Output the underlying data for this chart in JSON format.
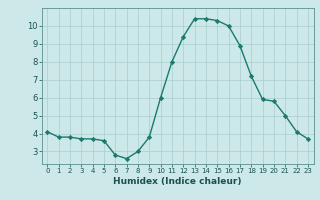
{
  "x": [
    0,
    1,
    2,
    3,
    4,
    5,
    6,
    7,
    8,
    9,
    10,
    11,
    12,
    13,
    14,
    15,
    16,
    17,
    18,
    19,
    20,
    21,
    22,
    23
  ],
  "y": [
    4.1,
    3.8,
    3.8,
    3.7,
    3.7,
    3.6,
    2.8,
    2.6,
    3.0,
    3.8,
    6.0,
    8.0,
    9.4,
    10.4,
    10.4,
    10.3,
    10.0,
    8.9,
    7.2,
    5.9,
    5.8,
    5.0,
    4.1,
    3.7
  ],
  "xlabel": "Humidex (Indice chaleur)",
  "xlim": [
    -0.5,
    23.5
  ],
  "ylim": [
    2.3,
    11.0
  ],
  "yticks": [
    3,
    4,
    5,
    6,
    7,
    8,
    9,
    10
  ],
  "xticks": [
    0,
    1,
    2,
    3,
    4,
    5,
    6,
    7,
    8,
    9,
    10,
    11,
    12,
    13,
    14,
    15,
    16,
    17,
    18,
    19,
    20,
    21,
    22,
    23
  ],
  "line_color": "#1a7a6e",
  "marker_color": "#1a7a6e",
  "bg_color": "#cde8e8",
  "grid_color": "#a8cece",
  "axis_bg": "#cde8e8"
}
